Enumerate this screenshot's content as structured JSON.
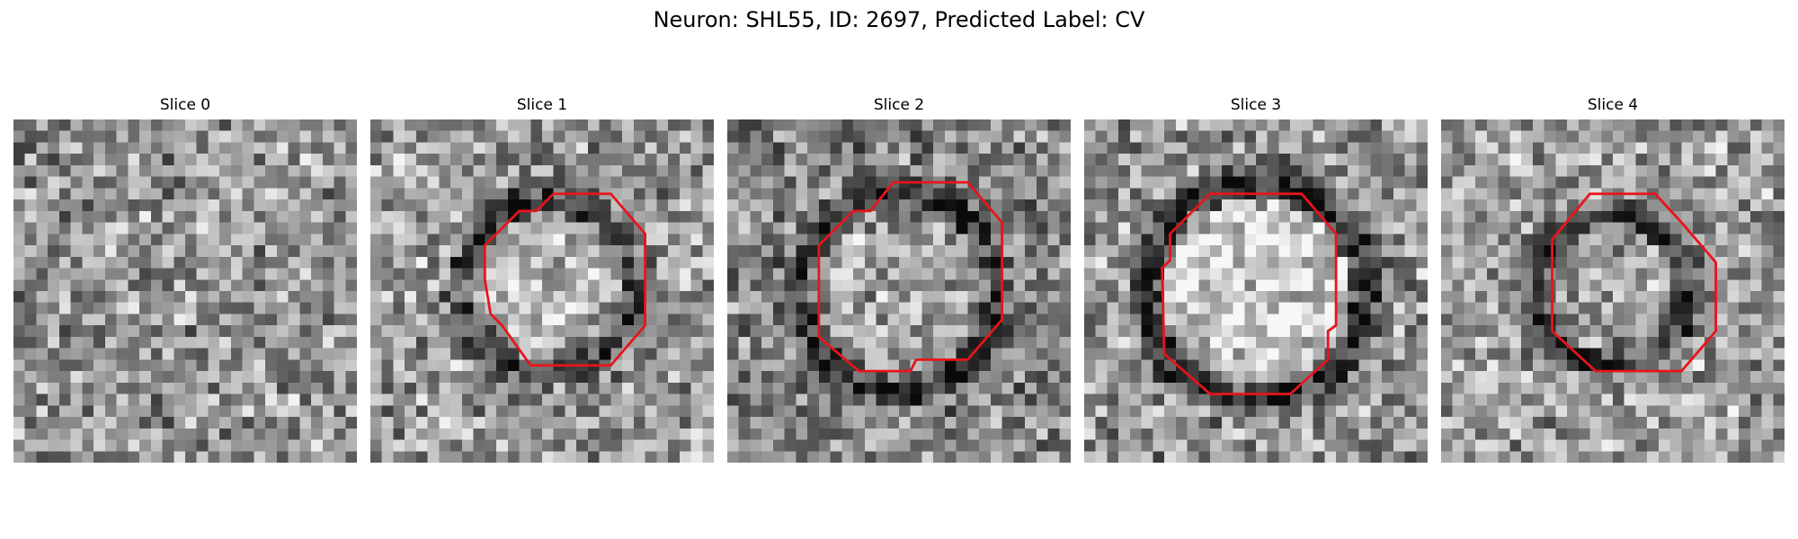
{
  "figure": {
    "title": "Neuron: SHL55, ID: 2697, Predicted Label: CV"
  },
  "colors": {
    "outline": "#e8141b",
    "background": "#ffffff"
  },
  "panels": [
    {
      "title": "Slice 0",
      "seed": 11,
      "mean": 0.58,
      "has_outline": false,
      "outline": []
    },
    {
      "title": "Slice 1",
      "seed": 23,
      "mean": 0.6,
      "has_outline": true,
      "ring_center": [
        15.5,
        14.5
      ],
      "ring_radius": 7.6,
      "ring_dark": 0.22,
      "core_light": 0.1,
      "outline": [
        [
          16,
          6.5
        ],
        [
          21,
          6.5
        ],
        [
          24,
          10
        ],
        [
          24,
          18
        ],
        [
          21,
          21.5
        ],
        [
          14,
          21.5
        ],
        [
          11.5,
          18
        ],
        [
          10.5,
          17
        ],
        [
          10,
          14
        ],
        [
          10,
          11
        ],
        [
          13,
          8
        ],
        [
          14.5,
          8
        ]
      ]
    },
    {
      "title": "Slice 2",
      "seed": 37,
      "mean": 0.52,
      "has_outline": true,
      "ring_center": [
        15,
        15
      ],
      "ring_radius": 8.6,
      "ring_dark": 0.2,
      "core_light": 0.12,
      "outline": [
        [
          14.5,
          5.5
        ],
        [
          21,
          5.5
        ],
        [
          24,
          9
        ],
        [
          24,
          17.5
        ],
        [
          21,
          21
        ],
        [
          16.5,
          21
        ],
        [
          16,
          22
        ],
        [
          11.5,
          22
        ],
        [
          8,
          19
        ],
        [
          8,
          11
        ],
        [
          11,
          8
        ],
        [
          12.5,
          8
        ]
      ]
    },
    {
      "title": "Slice 3",
      "seed": 41,
      "mean": 0.58,
      "has_outline": true,
      "ring_center": [
        15,
        15
      ],
      "ring_radius": 9.6,
      "ring_dark": 0.3,
      "core_light": 0.22,
      "outline": [
        [
          11,
          6.5
        ],
        [
          19,
          6.5
        ],
        [
          22,
          10
        ],
        [
          22,
          18
        ],
        [
          21.3,
          18.5
        ],
        [
          21.3,
          21
        ],
        [
          18,
          24
        ],
        [
          11,
          24
        ],
        [
          7,
          20.5
        ],
        [
          6.8,
          13
        ],
        [
          7.5,
          12.3
        ],
        [
          7.5,
          10
        ]
      ]
    },
    {
      "title": "Slice 4",
      "seed": 53,
      "mean": 0.62,
      "has_outline": true,
      "ring_center": [
        15,
        15
      ],
      "ring_radius": 6.6,
      "ring_dark": 0.26,
      "core_light": 0.02,
      "outline": [
        [
          13,
          6.5
        ],
        [
          18.7,
          6.5
        ],
        [
          21,
          9
        ],
        [
          24,
          12.5
        ],
        [
          24,
          18.5
        ],
        [
          21,
          22
        ],
        [
          13.5,
          22
        ],
        [
          9.7,
          18.5
        ],
        [
          9.7,
          10.5
        ]
      ]
    }
  ]
}
